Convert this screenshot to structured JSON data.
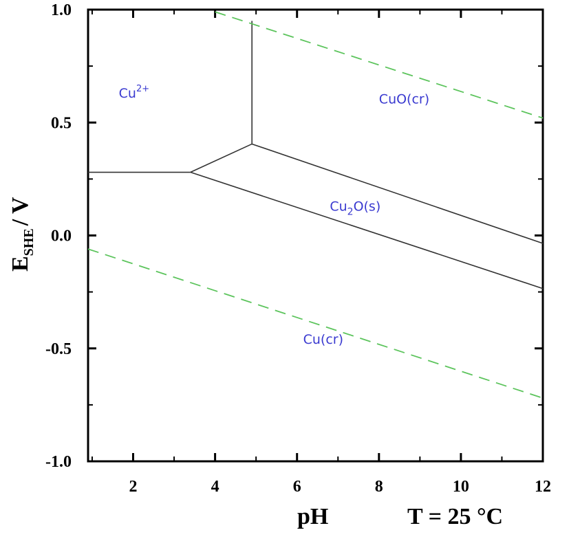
{
  "chart_data": {
    "type": "line",
    "xlabel": "pH",
    "ylabel": {
      "main": "E",
      "sub": "SHE",
      "rest": "/ V"
    },
    "annotation": "T = 25 °C",
    "xlim": [
      0.9,
      12.0
    ],
    "ylim": [
      -1.0,
      1.0
    ],
    "x_ticks": [
      2,
      4,
      6,
      8,
      10,
      12
    ],
    "x_tick_labels": [
      "2",
      "4",
      "6",
      "8",
      "10",
      "12"
    ],
    "y_ticks": [
      1.0,
      0.5,
      0.0,
      -0.5,
      -1.0
    ],
    "y_tick_labels": [
      "1.0",
      "0.5",
      "0.0",
      "-0.5",
      "-1.0"
    ],
    "grid": false,
    "series": [
      {
        "style": "solid",
        "color": "#333333",
        "x": [
          0.9,
          3.4
        ],
        "y": [
          0.28,
          0.28
        ]
      },
      {
        "style": "solid",
        "color": "#333333",
        "x": [
          3.4,
          4.9
        ],
        "y": [
          0.28,
          0.405
        ]
      },
      {
        "style": "solid",
        "color": "#333333",
        "x": [
          4.9,
          4.9
        ],
        "y": [
          0.405,
          0.95
        ]
      },
      {
        "style": "solid",
        "color": "#333333",
        "x": [
          4.9,
          12.0
        ],
        "y": [
          0.405,
          -0.035
        ]
      },
      {
        "style": "solid",
        "color": "#333333",
        "x": [
          3.4,
          12.0
        ],
        "y": [
          0.28,
          -0.235
        ]
      },
      {
        "style": "dashed",
        "color": "#5cc45c",
        "x": [
          4.0,
          12.0
        ],
        "y": [
          0.99,
          0.52
        ]
      },
      {
        "style": "dashed",
        "color": "#5cc45c",
        "x": [
          0.9,
          12.0
        ],
        "y": [
          -0.06,
          -0.72
        ]
      }
    ],
    "regions": [
      {
        "label": "Cu",
        "sup": "2+",
        "x": 1.65,
        "y": 0.61
      },
      {
        "label": "CuO(cr)",
        "x": 8.0,
        "y": 0.585
      },
      {
        "label": "Cu",
        "sub": "2",
        "rest": "O(s)",
        "x": 6.8,
        "y": 0.11
      },
      {
        "label": "Cu(cr)",
        "x": 6.15,
        "y": -0.48
      }
    ]
  }
}
